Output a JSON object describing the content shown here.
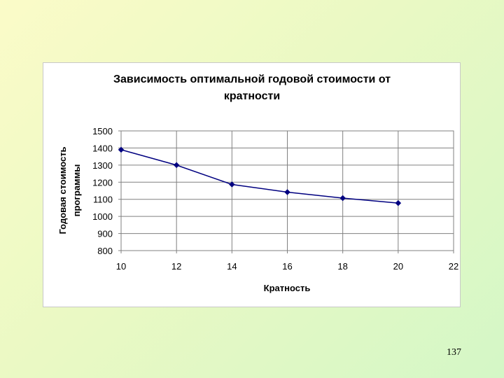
{
  "chart_data": {
    "type": "line",
    "title_lines": [
      "Зависимость оптимальной годовой стоимости от",
      "кратности"
    ],
    "xlabel": "Кратность",
    "ylabel_lines": [
      "Годовая стоимость",
      "программы"
    ],
    "xlim": [
      10,
      22
    ],
    "ylim": [
      800,
      1500
    ],
    "xticks": [
      10,
      12,
      14,
      16,
      18,
      20,
      22
    ],
    "yticks": [
      800,
      900,
      1000,
      1100,
      1200,
      1300,
      1400,
      1500
    ],
    "grid": true,
    "legend": "none",
    "series": [
      {
        "x": [
          10,
          12,
          14,
          16,
          18,
          20
        ],
        "y": [
          1390,
          1300,
          1187,
          1142,
          1107,
          1078
        ],
        "color": "#000080",
        "marker": "diamond"
      }
    ]
  },
  "slide": {
    "number": "137"
  }
}
